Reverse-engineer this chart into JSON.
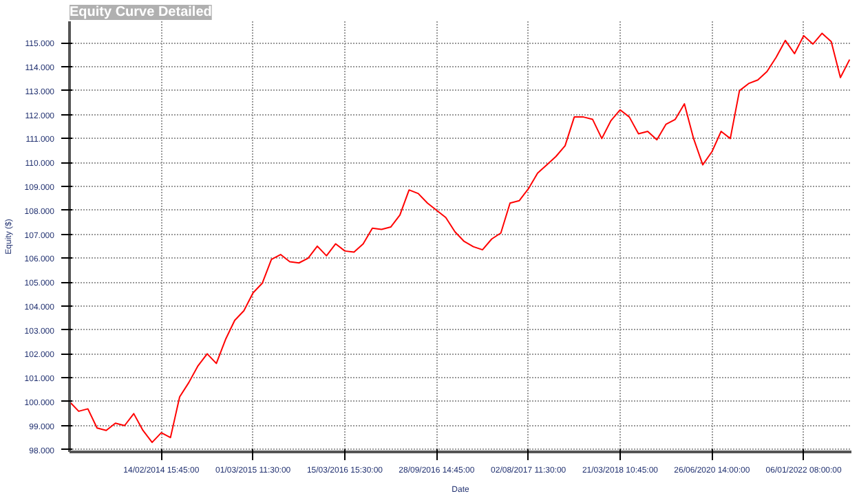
{
  "chart_data": {
    "type": "line",
    "title": "Equity Curve Detailed",
    "xlabel": "Date",
    "ylabel": "Equity ($)",
    "ylim": [
      97900,
      115900
    ],
    "categories": [
      null,
      null,
      null,
      null,
      null,
      null,
      null,
      null,
      null,
      null,
      "14/02/2014 15:45:00",
      null,
      null,
      null,
      null,
      null,
      null,
      null,
      null,
      null,
      "01/03/2015 11:30:00",
      null,
      null,
      null,
      null,
      null,
      null,
      null,
      null,
      null,
      "15/03/2016 15:30:00",
      null,
      null,
      null,
      null,
      null,
      null,
      null,
      null,
      null,
      "28/09/2016 14:45:00",
      null,
      null,
      null,
      null,
      null,
      null,
      null,
      null,
      null,
      "02/08/2017 11:30:00",
      null,
      null,
      null,
      null,
      null,
      null,
      null,
      null,
      null,
      "21/03/2018 10:45:00",
      null,
      null,
      null,
      null,
      null,
      null,
      null,
      null,
      null,
      "26/06/2020 14:00:00",
      null,
      null,
      null,
      null,
      null,
      null,
      null,
      null,
      null,
      "06/01/2022 08:00:00",
      null,
      null,
      null,
      null,
      null
    ],
    "yticks": [
      {
        "value": 98000,
        "label": "98.000"
      },
      {
        "value": 99000,
        "label": "99.000"
      },
      {
        "value": 100000,
        "label": "100.000"
      },
      {
        "value": 101000,
        "label": "101.000"
      },
      {
        "value": 102000,
        "label": "102.000"
      },
      {
        "value": 103000,
        "label": "103.000"
      },
      {
        "value": 104000,
        "label": "104.000"
      },
      {
        "value": 105000,
        "label": "105.000"
      },
      {
        "value": 106000,
        "label": "106.000"
      },
      {
        "value": 107000,
        "label": "107.000"
      },
      {
        "value": 108000,
        "label": "108.000"
      },
      {
        "value": 109000,
        "label": "109.000"
      },
      {
        "value": 110000,
        "label": "110.000"
      },
      {
        "value": 111000,
        "label": "111.000"
      },
      {
        "value": 112000,
        "label": "112.000"
      },
      {
        "value": 113000,
        "label": "113.000"
      },
      {
        "value": 114000,
        "label": "114.000"
      },
      {
        "value": 115000,
        "label": "115.000"
      }
    ],
    "grid": true,
    "marker": "none",
    "line_style": "solid",
    "series": [
      {
        "color": "#ff0000",
        "values": [
          100000,
          99600,
          99700,
          98900,
          98800,
          99100,
          99000,
          99500,
          98800,
          98300,
          98700,
          98500,
          100200,
          100800,
          101500,
          102000,
          101600,
          102600,
          103400,
          103800,
          104550,
          104950,
          105950,
          106150,
          105850,
          105800,
          106000,
          106500,
          106100,
          106600,
          106300,
          106250,
          106600,
          107250,
          107200,
          107300,
          107800,
          108850,
          108700,
          108300,
          108000,
          107700,
          107100,
          106700,
          106480,
          106350,
          106800,
          107050,
          108300,
          108400,
          108900,
          109550,
          109900,
          110250,
          110700,
          111900,
          111900,
          111800,
          111000,
          111750,
          112200,
          111900,
          111200,
          111300,
          110950,
          111600,
          111800,
          112450,
          111000,
          109900,
          110450,
          111300,
          111000,
          113000,
          113300,
          113450,
          113800,
          114400,
          115100,
          114550,
          115300,
          114950,
          115400,
          115050,
          113550,
          114300
        ]
      }
    ]
  }
}
